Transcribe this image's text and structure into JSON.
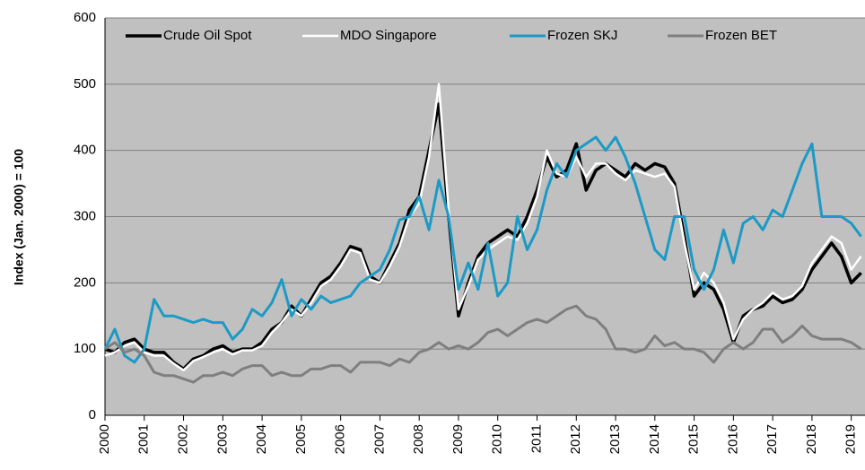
{
  "chart_data": {
    "type": "line",
    "y_label": "Index (Jan. 2000) = 100",
    "x": [
      2000,
      2000.25,
      2000.5,
      2000.75,
      2001,
      2001.25,
      2001.5,
      2001.75,
      2002,
      2002.25,
      2002.5,
      2002.75,
      2003,
      2003.25,
      2003.5,
      2003.75,
      2004,
      2004.25,
      2004.5,
      2004.75,
      2005,
      2005.25,
      2005.5,
      2005.75,
      2006,
      2006.25,
      2006.5,
      2006.75,
      2007,
      2007.25,
      2007.5,
      2007.75,
      2008,
      2008.25,
      2008.5,
      2008.75,
      2009,
      2009.25,
      2009.5,
      2009.75,
      2010,
      2010.25,
      2010.5,
      2010.75,
      2011,
      2011.25,
      2011.5,
      2011.75,
      2012,
      2012.25,
      2012.5,
      2012.75,
      2013,
      2013.25,
      2013.5,
      2013.75,
      2014,
      2014.25,
      2014.5,
      2014.75,
      2015,
      2015.25,
      2015.5,
      2015.75,
      2016,
      2016.25,
      2016.5,
      2016.75,
      2017,
      2017.25,
      2017.5,
      2017.75,
      2018,
      2018.25,
      2018.5,
      2018.75,
      2019,
      2019.25
    ],
    "series": [
      {
        "name": "Crude Oil Spot",
        "color": "#000000",
        "width": 3.5,
        "values": [
          100,
          95,
          110,
          115,
          100,
          95,
          95,
          80,
          70,
          85,
          90,
          100,
          105,
          95,
          100,
          100,
          110,
          130,
          140,
          165,
          150,
          175,
          200,
          210,
          230,
          255,
          250,
          210,
          200,
          230,
          260,
          310,
          330,
          400,
          470,
          300,
          150,
          200,
          240,
          260,
          270,
          280,
          270,
          300,
          340,
          390,
          360,
          370,
          410,
          340,
          370,
          380,
          370,
          360,
          380,
          370,
          380,
          375,
          350,
          270,
          180,
          200,
          190,
          160,
          110,
          150,
          160,
          165,
          180,
          170,
          175,
          190,
          220,
          240,
          260,
          240,
          200,
          215
        ]
      },
      {
        "name": "MDO Singapore",
        "color": "#ffffff",
        "width": 2.5,
        "values": [
          90,
          95,
          105,
          110,
          95,
          90,
          90,
          78,
          68,
          82,
          88,
          95,
          100,
          92,
          98,
          98,
          105,
          125,
          140,
          160,
          150,
          170,
          195,
          205,
          225,
          250,
          245,
          205,
          200,
          225,
          255,
          300,
          320,
          390,
          500,
          310,
          160,
          195,
          235,
          250,
          260,
          270,
          265,
          290,
          330,
          400,
          365,
          360,
          390,
          360,
          380,
          380,
          365,
          355,
          370,
          365,
          360,
          365,
          345,
          260,
          190,
          215,
          200,
          170,
          115,
          145,
          160,
          170,
          185,
          175,
          180,
          195,
          230,
          250,
          270,
          260,
          220,
          240
        ]
      },
      {
        "name": "Frozen SKJ",
        "color": "#1b9ac6",
        "width": 3,
        "values": [
          100,
          130,
          90,
          80,
          100,
          175,
          150,
          150,
          145,
          140,
          145,
          140,
          140,
          115,
          130,
          160,
          150,
          170,
          205,
          150,
          175,
          160,
          180,
          170,
          175,
          180,
          200,
          210,
          220,
          250,
          295,
          300,
          330,
          280,
          355,
          300,
          190,
          230,
          190,
          260,
          180,
          200,
          300,
          250,
          280,
          340,
          380,
          360,
          400,
          410,
          420,
          400,
          420,
          390,
          350,
          300,
          250,
          235,
          300,
          300,
          220,
          190,
          220,
          280,
          230,
          290,
          300,
          280,
          310,
          300,
          340,
          380,
          410,
          300,
          300,
          300,
          290,
          270
        ]
      },
      {
        "name": "Frozen BET",
        "color": "#7f7f7f",
        "width": 3,
        "values": [
          100,
          110,
          95,
          100,
          90,
          65,
          60,
          60,
          55,
          50,
          60,
          60,
          65,
          60,
          70,
          75,
          75,
          60,
          65,
          60,
          60,
          70,
          70,
          75,
          75,
          65,
          80,
          80,
          80,
          75,
          85,
          80,
          95,
          100,
          110,
          100,
          105,
          100,
          110,
          125,
          130,
          120,
          130,
          140,
          145,
          140,
          150,
          160,
          165,
          150,
          145,
          130,
          100,
          100,
          95,
          100,
          120,
          105,
          110,
          100,
          100,
          95,
          80,
          100,
          110,
          100,
          110,
          130,
          130,
          110,
          120,
          135,
          120,
          115,
          115,
          115,
          110,
          100
        ]
      }
    ],
    "xlim": [
      2000,
      2019.35
    ],
    "xticks": [
      2000,
      2001,
      2002,
      2003,
      2004,
      2005,
      2006,
      2007,
      2008,
      2009,
      2010,
      2011,
      2012,
      2013,
      2014,
      2015,
      2016,
      2017,
      2018,
      2019
    ],
    "ylim": [
      0,
      600
    ],
    "yticks": [
      0,
      100,
      200,
      300,
      400,
      500,
      600
    ],
    "grid": true,
    "legend": "top",
    "plot_background": "#c0c0c0"
  }
}
